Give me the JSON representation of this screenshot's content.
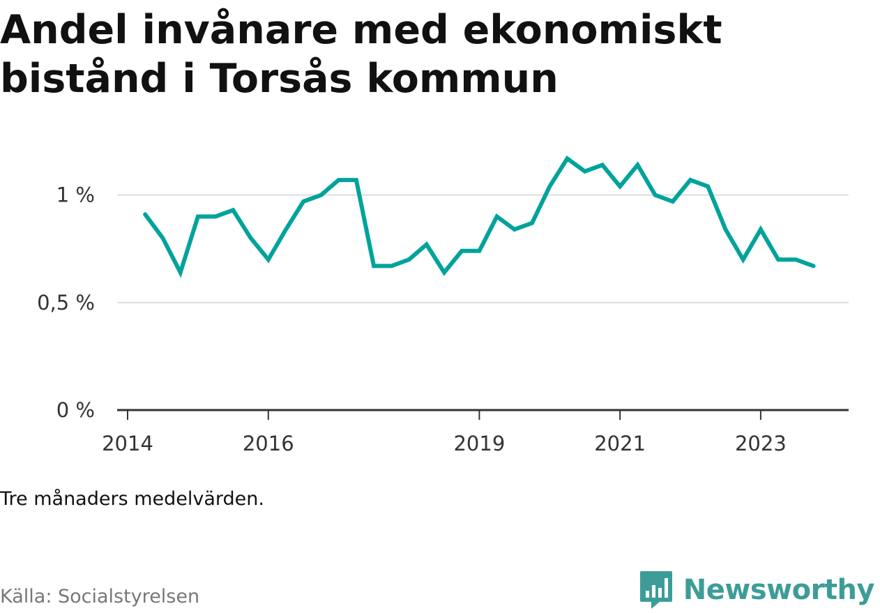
{
  "header": {
    "title": "Andel invånare med ekonomiskt bistånd i Torsås kommun"
  },
  "footer": {
    "note": "Tre månaders medelvärden.",
    "source": "Källa: Socialstyrelsen",
    "brand": "Newsworthy",
    "brand_icon": "bar-chart-speech-bubble-icon"
  },
  "colors": {
    "line": "#00a39b",
    "grid": "#dddddd",
    "axis": "#333333",
    "brand": "#3d9c98"
  },
  "chart_data": {
    "type": "line",
    "x_tick_labels": [
      "2014",
      "2016",
      "2019",
      "2021",
      "2023"
    ],
    "y_tick_labels": [
      "0 %",
      "0,5 %",
      "1 %"
    ],
    "ylim": [
      0,
      1.2
    ],
    "grid": "horizontal",
    "series": [
      {
        "x": [
          "2014-04",
          "2014-07",
          "2014-10",
          "2015-01",
          "2015-04",
          "2015-07",
          "2015-10",
          "2016-01",
          "2016-04",
          "2016-07",
          "2016-10",
          "2017-01",
          "2017-04",
          "2017-07",
          "2017-10",
          "2018-01",
          "2018-04",
          "2018-07",
          "2018-10",
          "2019-01",
          "2019-04",
          "2019-07",
          "2019-10",
          "2020-01",
          "2020-04",
          "2020-07",
          "2020-10",
          "2021-01",
          "2021-04",
          "2021-07",
          "2021-10",
          "2022-01",
          "2022-04",
          "2022-07",
          "2022-10",
          "2023-01",
          "2023-04",
          "2023-07",
          "2023-10"
        ],
        "values": [
          0.91,
          0.8,
          0.64,
          0.9,
          0.9,
          0.93,
          0.8,
          0.7,
          0.84,
          0.97,
          1.0,
          1.07,
          1.07,
          0.67,
          0.67,
          0.7,
          0.77,
          0.64,
          0.74,
          0.74,
          0.9,
          0.84,
          0.87,
          1.04,
          1.17,
          1.11,
          1.14,
          1.04,
          1.14,
          1.0,
          0.97,
          1.07,
          1.04,
          0.84,
          0.7,
          0.84,
          0.7,
          0.7,
          0.67
        ]
      }
    ]
  }
}
